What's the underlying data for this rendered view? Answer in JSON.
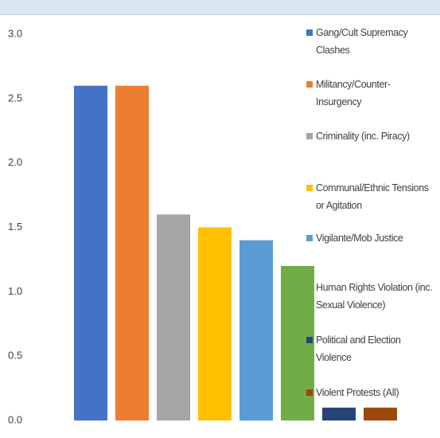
{
  "chart_data": {
    "type": "bar",
    "series": [
      {
        "name": "Gang/Cult Supremacy Clashes",
        "color": "#4472c4",
        "values": [
          2.6
        ]
      },
      {
        "name": "Militancy/Counter-Insurgency",
        "color": "#ed7d31",
        "values": [
          2.6
        ]
      },
      {
        "name": "Criminality (inc. Piracy)",
        "color": "#a5a5a5",
        "values": [
          1.6
        ]
      },
      {
        "name": "Communal/Ethnic Tensions or Agitation",
        "color": "#ffc000",
        "values": [
          1.5
        ]
      },
      {
        "name": "Vigilante/Mob Justice",
        "color": "#5b9bd5",
        "values": [
          1.4
        ]
      },
      {
        "name": "Human Rights Violation (inc. Sexual Violence)",
        "color": "#70ad47",
        "values": [
          1.2
        ]
      },
      {
        "name": "Political and Election Violence",
        "color": "#264478",
        "values": [
          0.1
        ]
      },
      {
        "name": "Violent Protests (All)",
        "color": "#9e480e",
        "values": [
          0.1
        ]
      }
    ],
    "ylim": [
      0,
      3
    ],
    "yticks": [
      {
        "value": 0,
        "label": "0.0"
      },
      0.5,
      {
        "value": 1,
        "label": "1.0"
      },
      1.5,
      {
        "value": 2,
        "label": "2.0"
      },
      2.5,
      {
        "value": 3,
        "label": "3.0"
      }
    ],
    "grid": false,
    "legend": "right"
  }
}
